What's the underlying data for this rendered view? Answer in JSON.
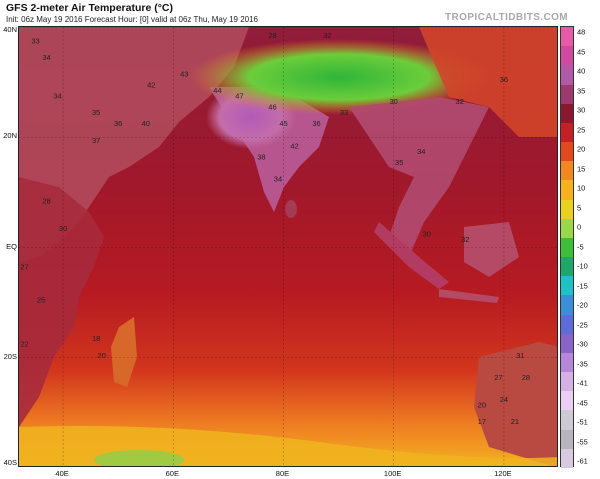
{
  "header": {
    "title": "GFS 2-meter Air Temperature (°C)",
    "subtitle": "Init: 06z May 19 2016   Forecast Hour: [0]   valid at 06z Thu, May 19 2016",
    "brand": "TROPICALTIDBITS.COM"
  },
  "map": {
    "lat_labels": [
      "40N",
      "20N",
      "EQ",
      "20S",
      "40S"
    ],
    "lat_values": [
      40,
      20,
      0,
      -20,
      -40
    ],
    "lon_labels": [
      "40E",
      "60E",
      "80E",
      "100E",
      "120E"
    ],
    "lon_values": [
      40,
      60,
      80,
      100,
      120
    ],
    "lon_range": [
      32,
      130
    ],
    "lat_range": [
      -40,
      40
    ],
    "station_values": [
      {
        "v": "33",
        "lon": 35,
        "lat": 37
      },
      {
        "v": "34",
        "lon": 37,
        "lat": 34
      },
      {
        "v": "34",
        "lon": 39,
        "lat": 27
      },
      {
        "v": "35",
        "lon": 46,
        "lat": 24
      },
      {
        "v": "36",
        "lon": 50,
        "lat": 22
      },
      {
        "v": "37",
        "lon": 46,
        "lat": 19
      },
      {
        "v": "40",
        "lon": 55,
        "lat": 22
      },
      {
        "v": "43",
        "lon": 62,
        "lat": 31
      },
      {
        "v": "42",
        "lon": 56,
        "lat": 29
      },
      {
        "v": "44",
        "lon": 68,
        "lat": 28
      },
      {
        "v": "47",
        "lon": 72,
        "lat": 27
      },
      {
        "v": "46",
        "lon": 78,
        "lat": 25
      },
      {
        "v": "45",
        "lon": 80,
        "lat": 22
      },
      {
        "v": "42",
        "lon": 82,
        "lat": 18
      },
      {
        "v": "38",
        "lon": 76,
        "lat": 16
      },
      {
        "v": "36",
        "lon": 86,
        "lat": 22
      },
      {
        "v": "34",
        "lon": 79,
        "lat": 12
      },
      {
        "v": "33",
        "lon": 91,
        "lat": 24
      },
      {
        "v": "30",
        "lon": 100,
        "lat": 26
      },
      {
        "v": "35",
        "lon": 101,
        "lat": 15
      },
      {
        "v": "34",
        "lon": 105,
        "lat": 17
      },
      {
        "v": "32",
        "lon": 112,
        "lat": 26
      },
      {
        "v": "36",
        "lon": 120,
        "lat": 30
      },
      {
        "v": "28",
        "lon": 78,
        "lat": 38
      },
      {
        "v": "32",
        "lon": 88,
        "lat": 38
      },
      {
        "v": "30",
        "lon": 106,
        "lat": 2
      },
      {
        "v": "32",
        "lon": 113,
        "lat": 1
      },
      {
        "v": "30",
        "lon": 40,
        "lat": 3
      },
      {
        "v": "28",
        "lon": 37,
        "lat": 8
      },
      {
        "v": "27",
        "lon": 33,
        "lat": -4
      },
      {
        "v": "25",
        "lon": 36,
        "lat": -10
      },
      {
        "v": "22",
        "lon": 33,
        "lat": -18
      },
      {
        "v": "20",
        "lon": 47,
        "lat": -20
      },
      {
        "v": "18",
        "lon": 46,
        "lat": -17
      },
      {
        "v": "31",
        "lon": 123,
        "lat": -20
      },
      {
        "v": "27",
        "lon": 119,
        "lat": -24
      },
      {
        "v": "28",
        "lon": 124,
        "lat": -24
      },
      {
        "v": "24",
        "lon": 120,
        "lat": -28
      },
      {
        "v": "20",
        "lon": 116,
        "lat": -29
      },
      {
        "v": "17",
        "lon": 116,
        "lat": -32
      },
      {
        "v": "21",
        "lon": 122,
        "lat": -32
      }
    ]
  },
  "colorbar": {
    "ticks": [
      "48",
      "45",
      "40",
      "35",
      "30",
      "25",
      "20",
      "15",
      "10",
      "5",
      "0",
      "-5",
      "-10",
      "-15",
      "-20",
      "-25",
      "-30",
      "-35",
      "-41",
      "-45",
      "-51",
      "-55",
      "-61"
    ],
    "colors": [
      "#e65aa6",
      "#d04aa0",
      "#b25aa8",
      "#9e3b6e",
      "#8a1830",
      "#c62026",
      "#e04a1e",
      "#f28820",
      "#f6b11f",
      "#e6d21f",
      "#98d84a",
      "#3dbf3a",
      "#1fa76a",
      "#1ec1c6",
      "#3a8fd8",
      "#5f6bd8",
      "#8a63c9",
      "#b487d8",
      "#d5b0e4",
      "#eacdf2",
      "#cfc9d4",
      "#b7b4bc",
      "#d7c9de"
    ]
  }
}
